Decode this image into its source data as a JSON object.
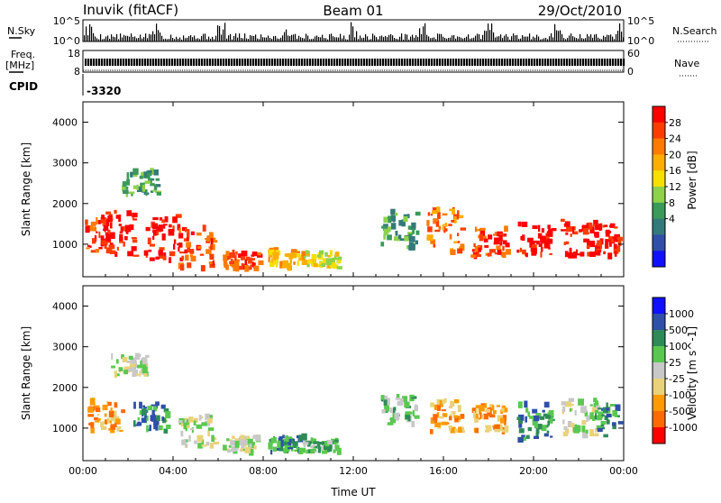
{
  "header": {
    "station": "Inuvik (fitACF)",
    "beam": "Beam 01",
    "date": "29/Oct/2010"
  },
  "aux_panels": {
    "nsky_label": "N.Sky",
    "nsky_ticks": [
      "10^5",
      "10^0"
    ],
    "nsearch_label": "N.Search",
    "nsearch_ticks": [
      "10^5",
      "10^0"
    ],
    "freq_label": "Freq.",
    "freq_unit": "[MHz]",
    "freq_ticks": [
      "18",
      "8"
    ],
    "nave_label": "Nave",
    "nave_ticks": [
      "60",
      "0"
    ],
    "cpid_label": "CPID",
    "cpid_value": "-3320"
  },
  "chart_data": [
    {
      "type": "heatmap",
      "name": "power-panel",
      "ylabel": "Slant Range [km]",
      "xlabel": "",
      "xlim": [
        0,
        24
      ],
      "ylim": [
        200,
        4500
      ],
      "x_tick_values": [
        0,
        4,
        8,
        12,
        16,
        20,
        24
      ],
      "y_tick_values": [
        1000,
        2000,
        3000,
        4000
      ],
      "y_tick_labels": [
        "1000",
        "2000",
        "3000",
        "4000"
      ],
      "colorbar": {
        "label": "Power [dB]",
        "levels": [
          "28",
          "24",
          "20",
          "16",
          "12",
          "8",
          "4"
        ],
        "colors": [
          "#ff0000",
          "#ff3c00",
          "#ff7a00",
          "#ffae00",
          "#f5e000",
          "#8ed24a",
          "#3a9a5a",
          "#357a7a",
          "#2f4fa8",
          "#1010ff"
        ]
      },
      "scatter_echoes": [
        {
          "t": 0.5,
          "r0": 800,
          "r1": 1700,
          "level": 1
        },
        {
          "t": 1.5,
          "r0": 700,
          "r1": 1800,
          "level": 0
        },
        {
          "t": 2.5,
          "r0": 2200,
          "r1": 2800,
          "level": 6
        },
        {
          "t": 3.5,
          "r0": 600,
          "r1": 1700,
          "level": 0
        },
        {
          "t": 5.0,
          "r0": 400,
          "r1": 1400,
          "level": 1
        },
        {
          "t": 7.0,
          "r0": 400,
          "r1": 800,
          "level": 1
        },
        {
          "t": 9.0,
          "r0": 400,
          "r1": 900,
          "level": 3
        },
        {
          "t": 10.5,
          "r0": 400,
          "r1": 800,
          "level": 4
        },
        {
          "t": 14.0,
          "r0": 900,
          "r1": 1800,
          "level": 6
        },
        {
          "t": 16.0,
          "r0": 700,
          "r1": 1900,
          "level": 2
        },
        {
          "t": 18.0,
          "r0": 700,
          "r1": 1400,
          "level": 1
        },
        {
          "t": 20.0,
          "r0": 700,
          "r1": 1500,
          "level": 0
        },
        {
          "t": 22.0,
          "r0": 700,
          "r1": 1600,
          "level": 0
        },
        {
          "t": 23.5,
          "r0": 700,
          "r1": 1500,
          "level": 0
        }
      ]
    },
    {
      "type": "heatmap",
      "name": "velocity-panel",
      "ylabel": "Slant Range [km]",
      "xlabel": "Time UT",
      "xlim": [
        0,
        24
      ],
      "ylim": [
        200,
        4500
      ],
      "x_tick_values": [
        0,
        4,
        8,
        12,
        16,
        20,
        24
      ],
      "x_tick_labels": [
        "00:00",
        "04:00",
        "08:00",
        "12:00",
        "16:00",
        "20:00",
        "00:00"
      ],
      "y_tick_values": [
        1000,
        2000,
        3000,
        4000
      ],
      "y_tick_labels": [
        "1000",
        "2000",
        "3000",
        "4000"
      ],
      "colorbar": {
        "label": "Velocity [m s^-1]",
        "levels": [
          "1000",
          "500",
          "100",
          "25",
          "-25",
          "-100",
          "-500",
          "-1000"
        ],
        "colors": [
          "#1010ff",
          "#2f4fa8",
          "#2e8b57",
          "#5ac850",
          "#c8c8c8",
          "#e9d27a",
          "#ff9a00",
          "#ff6a00",
          "#ff0000"
        ]
      },
      "scatter_echoes": [
        {
          "t": 1.0,
          "r0": 900,
          "r1": 1700,
          "level": 6
        },
        {
          "t": 2.0,
          "r0": 2300,
          "r1": 2800,
          "level": 4
        },
        {
          "t": 3.0,
          "r0": 900,
          "r1": 1600,
          "level": 2
        },
        {
          "t": 5.0,
          "r0": 500,
          "r1": 1300,
          "level": 4
        },
        {
          "t": 7.0,
          "r0": 400,
          "r1": 800,
          "level": 4
        },
        {
          "t": 9.0,
          "r0": 400,
          "r1": 800,
          "level": 2
        },
        {
          "t": 10.5,
          "r0": 400,
          "r1": 700,
          "level": 3
        },
        {
          "t": 14.0,
          "r0": 1100,
          "r1": 1800,
          "level": 3
        },
        {
          "t": 16.0,
          "r0": 900,
          "r1": 1700,
          "level": 6
        },
        {
          "t": 18.0,
          "r0": 900,
          "r1": 1600,
          "level": 6
        },
        {
          "t": 20.0,
          "r0": 700,
          "r1": 1600,
          "level": 2
        },
        {
          "t": 22.0,
          "r0": 800,
          "r1": 1700,
          "level": 4
        },
        {
          "t": 23.5,
          "r0": 800,
          "r1": 1600,
          "level": 2
        }
      ]
    }
  ]
}
